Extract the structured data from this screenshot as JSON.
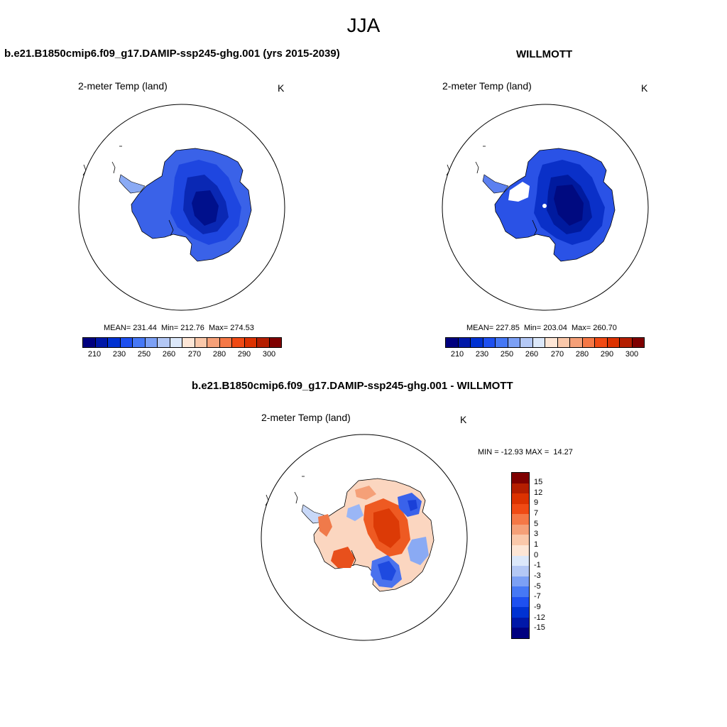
{
  "figure": {
    "season_title": "JJA",
    "variable_label": "2-meter Temp (land)",
    "unit": "K"
  },
  "left_panel": {
    "title": "b.e21.B1850cmip6.f09_g17.DAMIP-ssp245-ghg.001 (yrs 2015-2039)",
    "variable_label": "2-meter Temp (land)",
    "unit": "K",
    "stats": "MEAN= 231.44  Min= 212.76  Max= 274.53",
    "mean": 231.44,
    "min": 212.76,
    "max": 274.53
  },
  "right_panel": {
    "title": "WILLMOTT",
    "variable_label": "2-meter Temp (land)",
    "unit": "K",
    "stats": "MEAN= 227.85  Min= 203.04  Max= 260.70",
    "mean": 227.85,
    "min": 203.04,
    "max": 260.7
  },
  "diff_panel": {
    "title": "b.e21.B1850cmip6.f09_g17.DAMIP-ssp245-ghg.001 - WILLMOTT",
    "variable_label": "2-meter Temp (land)",
    "unit": "K",
    "stats": "MIN = -12.93 MAX =  14.27",
    "min": -12.93,
    "max": 14.27
  },
  "temp_colorbar": {
    "colors": [
      "#00007f",
      "#0018a8",
      "#0032d2",
      "#1e50f0",
      "#4678f5",
      "#7ca0f5",
      "#b4c8f5",
      "#dce8fa",
      "#fde6d6",
      "#fac8aa",
      "#f5a078",
      "#f57846",
      "#f04a14",
      "#dc3200",
      "#b41e00",
      "#7f0000"
    ],
    "tick_labels": [
      "210",
      "230",
      "250",
      "260",
      "270",
      "280",
      "290",
      "300"
    ]
  },
  "diff_colorbar": {
    "colors_top_to_bottom": [
      "#7f0000",
      "#b41e00",
      "#dc3200",
      "#f04a14",
      "#f57846",
      "#f5a078",
      "#fac8aa",
      "#fde6d6",
      "#dce8fa",
      "#b4c8f5",
      "#7ca0f5",
      "#4678f5",
      "#1e50f0",
      "#0032d2",
      "#0018a8",
      "#00007f"
    ],
    "tick_labels": [
      "15",
      "12",
      "9",
      "7",
      "5",
      "3",
      "1",
      "0",
      "-1",
      "-3",
      "-5",
      "-7",
      "-9",
      "-12",
      "-15"
    ]
  },
  "chart_data": [
    {
      "type": "heatmap",
      "title": "b.e21.B1850cmip6.f09_g17.DAMIP-ssp245-ghg.001 (yrs 2015-2039)",
      "variable": "2-meter Temp (land)",
      "units": "K",
      "mean": 231.44,
      "min": 212.76,
      "max": 274.53,
      "colorbar_ticks": [
        210,
        230,
        250,
        260,
        270,
        280,
        290,
        300
      ]
    },
    {
      "type": "heatmap",
      "title": "WILLMOTT",
      "variable": "2-meter Temp (land)",
      "units": "K",
      "mean": 227.85,
      "min": 203.04,
      "max": 260.7,
      "colorbar_ticks": [
        210,
        230,
        250,
        260,
        270,
        280,
        290,
        300
      ]
    },
    {
      "type": "heatmap",
      "title": "b.e21.B1850cmip6.f09_g17.DAMIP-ssp245-ghg.001 - WILLMOTT",
      "variable": "2-meter Temp (land)",
      "units": "K",
      "min": -12.93,
      "max": 14.27,
      "colorbar_ticks": [
        15,
        12,
        9,
        7,
        5,
        3,
        1,
        0,
        -1,
        -3,
        -5,
        -7,
        -9,
        -12,
        -15
      ]
    }
  ]
}
